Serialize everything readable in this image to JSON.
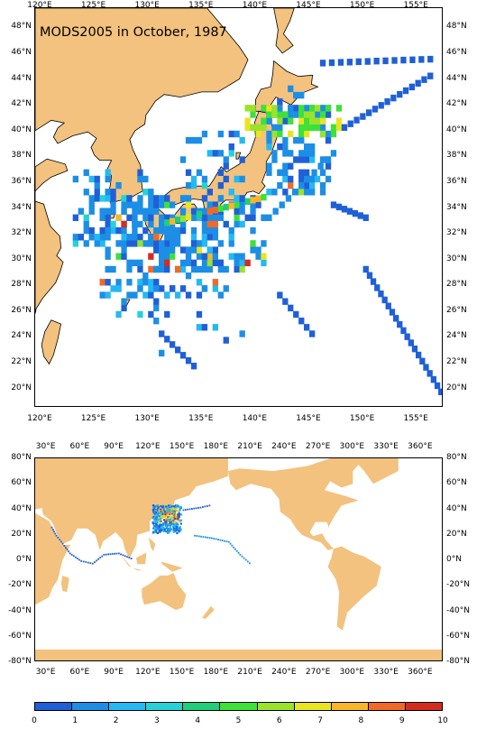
{
  "title": "MODS2005 in October, 1987",
  "colors": {
    "land": "#f2c27e",
    "ocean": "#ffffff",
    "coast": "#000000"
  },
  "regional_map": {
    "lon_ticks": [
      "120°E",
      "125°E",
      "130°E",
      "135°E",
      "140°E",
      "145°E",
      "150°E",
      "155°E"
    ],
    "lat_ticks": [
      "48°N",
      "46°N",
      "44°N",
      "42°N",
      "40°N",
      "38°N",
      "36°N",
      "34°N",
      "32°N",
      "30°N",
      "28°N",
      "26°N",
      "24°N",
      "22°N",
      "20°N"
    ],
    "lon_range": [
      119.5,
      157.5
    ],
    "lat_range": [
      18.5,
      49.5
    ]
  },
  "global_map": {
    "lon_ticks": [
      "30°E",
      "60°E",
      "90°E",
      "120°E",
      "150°E",
      "180°E",
      "210°E",
      "240°E",
      "270°E",
      "300°E",
      "330°E",
      "360°E"
    ],
    "lat_ticks": [
      "80°N",
      "60°N",
      "40°N",
      "20°N",
      "0°N",
      "-20°N",
      "-40°N",
      "-60°N",
      "-80°N"
    ],
    "lon_range": [
      20,
      380
    ],
    "lat_range": [
      -80,
      80
    ]
  },
  "colorbar": {
    "labels": [
      "0",
      "1",
      "2",
      "3",
      "4",
      "5",
      "6",
      "7",
      "8",
      "9",
      "10"
    ],
    "colors": [
      "#1f5fd8",
      "#1c8ee6",
      "#24b9f2",
      "#26d2d8",
      "#1fcf7a",
      "#3ee03a",
      "#9be22b",
      "#e8e520",
      "#f8b52a",
      "#f06a26",
      "#d42c1e"
    ]
  }
}
